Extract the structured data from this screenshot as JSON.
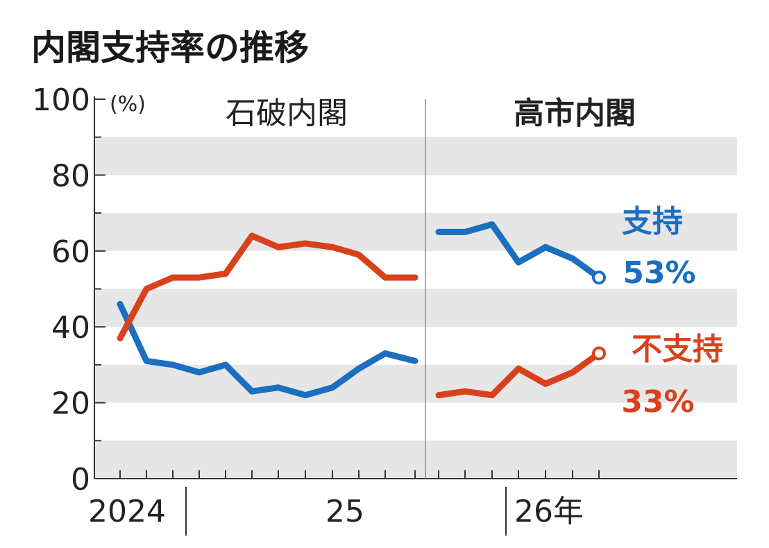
{
  "title": "内閣支持率の推移",
  "colors": {
    "support": "#1a6fc0",
    "disapprove": "#d9411d",
    "band": "#e6e6e6",
    "axis": "#333333"
  },
  "chart_data": {
    "type": "line",
    "title": "内閣支持率の推移",
    "ylabel": "(%)",
    "ylim": [
      0,
      100
    ],
    "yticks": [
      0,
      20,
      40,
      60,
      80,
      100
    ],
    "xlabels": [
      "2024",
      "25",
      "26年"
    ],
    "eras": [
      {
        "name": "石破内閣",
        "bold": false
      },
      {
        "name": "高市内閣",
        "bold": true
      }
    ],
    "series": [
      {
        "name": "支持",
        "color": "#1a6fc0",
        "segments": [
          [
            46,
            31,
            30,
            28,
            30,
            23,
            24,
            22,
            24,
            29,
            33,
            31
          ],
          [
            65,
            65,
            67,
            57,
            61,
            58,
            53
          ]
        ],
        "end_label": "支持",
        "end_value": "53%"
      },
      {
        "name": "不支持",
        "color": "#d9411d",
        "segments": [
          [
            37,
            50,
            53,
            53,
            54,
            64,
            61,
            62,
            61,
            59,
            53,
            53
          ],
          [
            22,
            23,
            22,
            29,
            25,
            28,
            33
          ]
        ],
        "end_label": "不支持",
        "end_value": "33%"
      }
    ]
  }
}
